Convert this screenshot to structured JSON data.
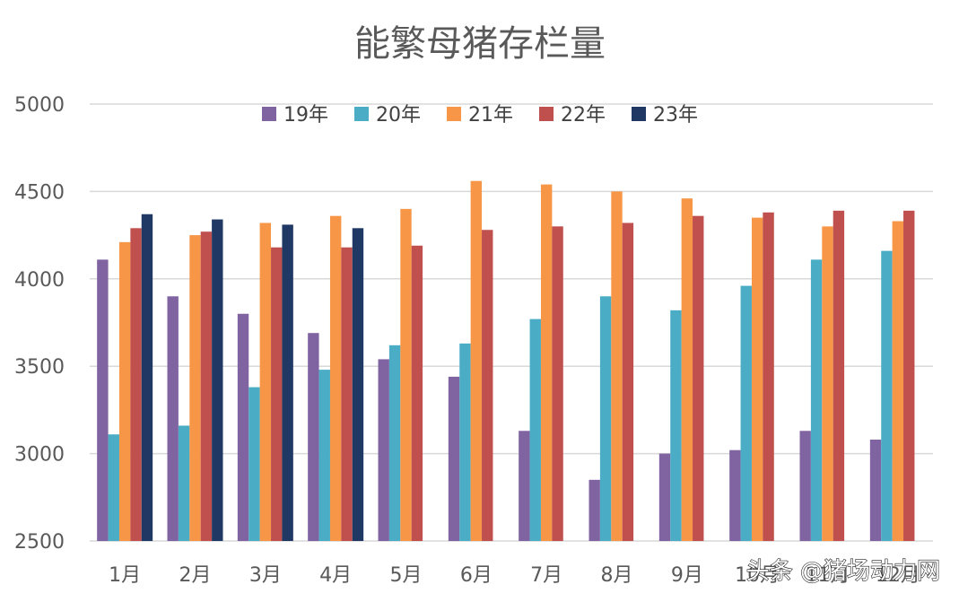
{
  "chart_data": {
    "type": "bar",
    "title": "能繁母猪存栏量",
    "xlabel": "",
    "ylabel": "",
    "ylim": [
      2500,
      5000
    ],
    "yticks": [
      2500,
      3000,
      3500,
      4000,
      4500,
      5000
    ],
    "grid": true,
    "legend_position": "top",
    "categories": [
      "1月",
      "2月",
      "3月",
      "4月",
      "5月",
      "6月",
      "7月",
      "8月",
      "9月",
      "10月",
      "11月",
      "12月"
    ],
    "series": [
      {
        "name": "19年",
        "color": "#8064A2",
        "values": [
          4110,
          3900,
          3800,
          3690,
          3540,
          3440,
          3130,
          2850,
          3000,
          3020,
          3130,
          3080
        ]
      },
      {
        "name": "20年",
        "color": "#4BACC6",
        "values": [
          3110,
          3160,
          3380,
          3480,
          3620,
          3630,
          3770,
          3900,
          3820,
          3960,
          4110,
          4160
        ]
      },
      {
        "name": "21年",
        "color": "#F79646",
        "values": [
          4210,
          4250,
          4320,
          4360,
          4400,
          4560,
          4540,
          4500,
          4460,
          4350,
          4300,
          4330
        ]
      },
      {
        "name": "22年",
        "color": "#C0504D",
        "values": [
          4290,
          4270,
          4180,
          4180,
          4190,
          4280,
          4300,
          4320,
          4360,
          4380,
          4390,
          4390
        ]
      },
      {
        "name": "23年",
        "color": "#1F3864",
        "values": [
          4370,
          4340,
          4310,
          4290,
          null,
          null,
          null,
          null,
          null,
          null,
          null,
          null
        ]
      }
    ]
  },
  "watermark": {
    "text": "头条 @猪场动力网"
  },
  "colors": {
    "grid": "#D9D9D9",
    "axis_text": "#595959"
  }
}
